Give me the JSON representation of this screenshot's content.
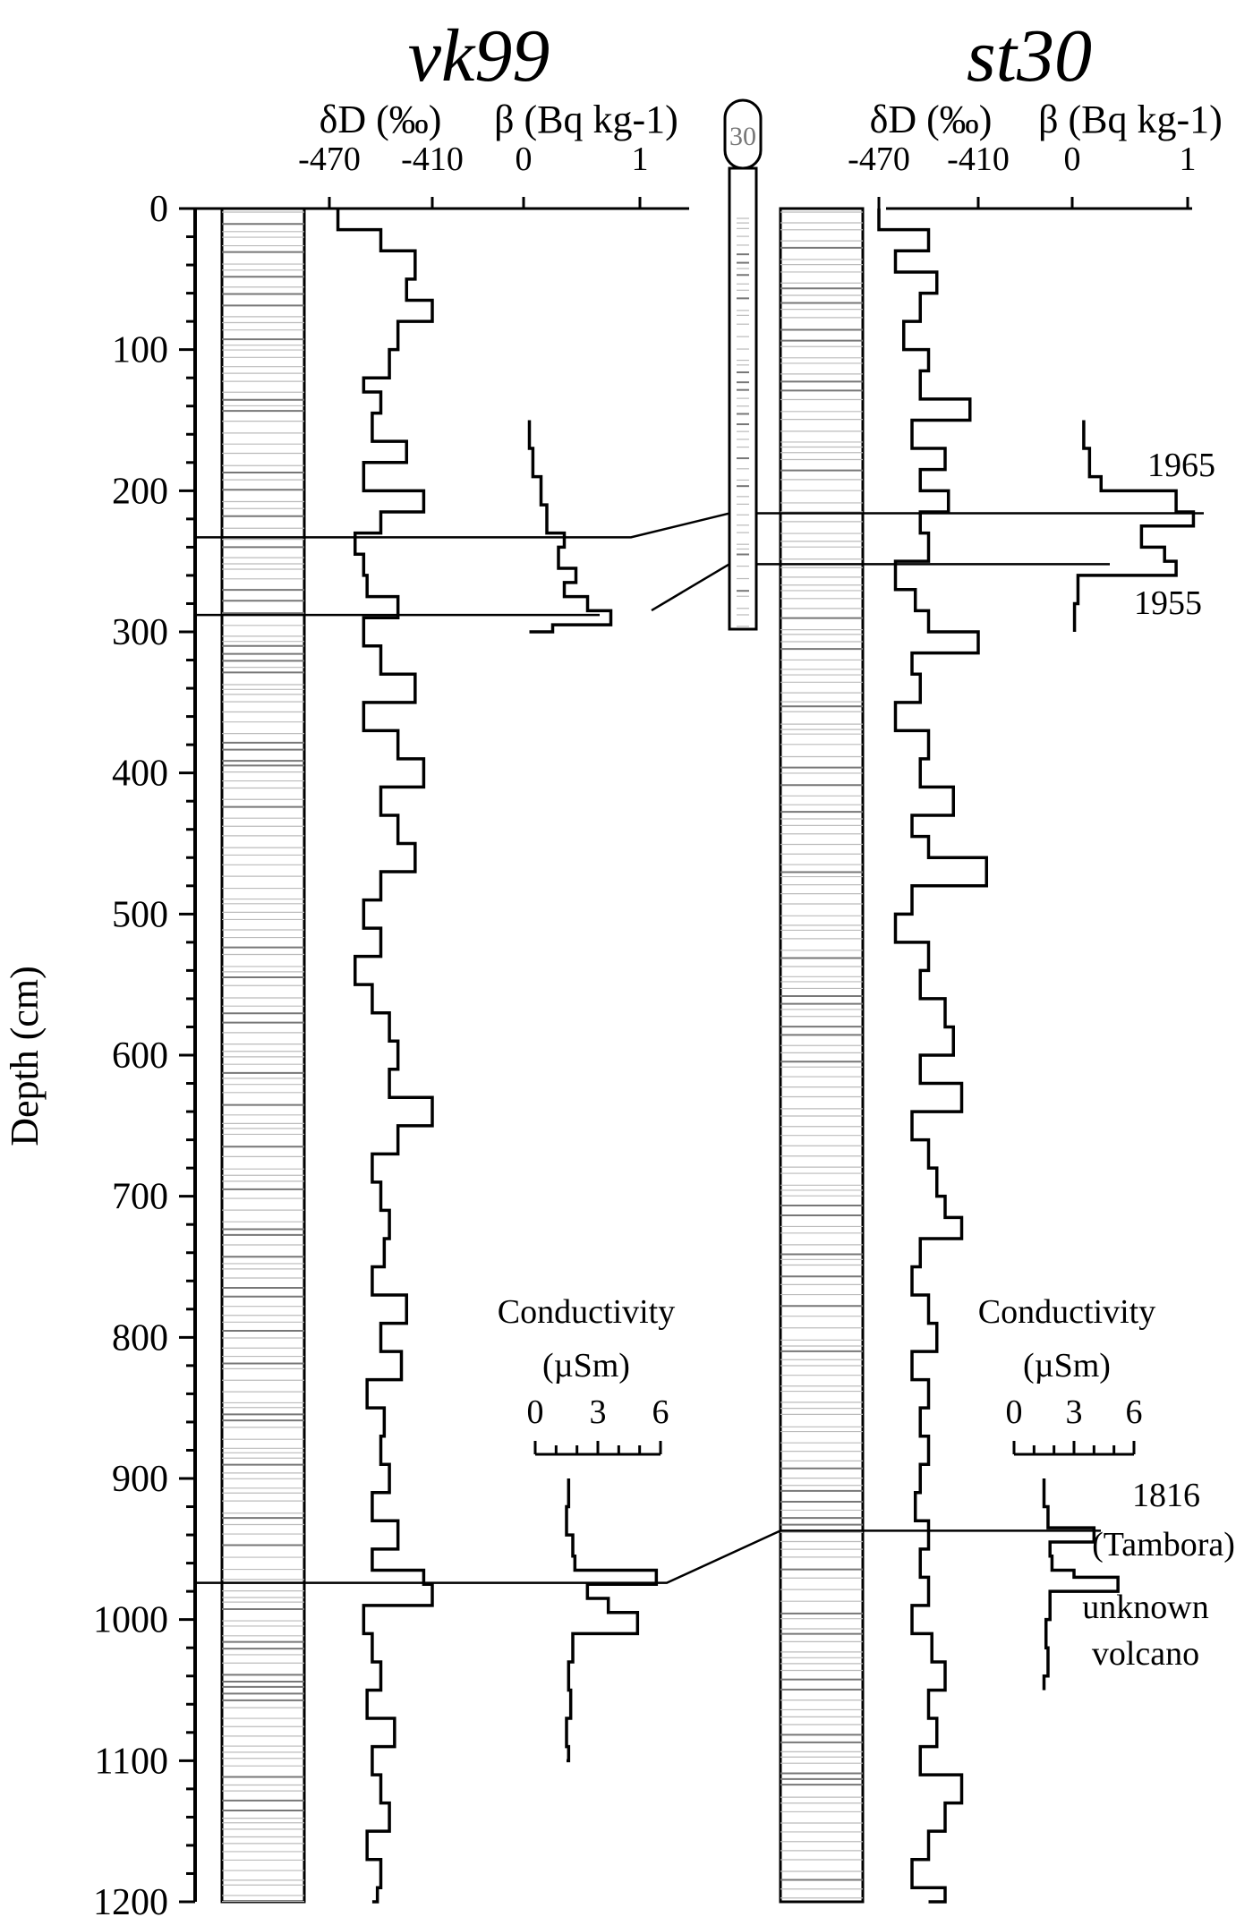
{
  "chart_data": {
    "type": "line",
    "ylabel": "Depth (cm)",
    "ylim": [
      0,
      1200
    ],
    "yticks": [
      "0",
      "100",
      "200",
      "300",
      "400",
      "500",
      "600",
      "700",
      "800",
      "900",
      "1000",
      "1100",
      "1200"
    ],
    "y_axis_inverted": true,
    "cores": [
      {
        "name": "vk99",
        "dD_label": "δD (‰)",
        "dD_ticks": [
          "-470",
          "-410"
        ],
        "beta_label": "β (Bq kg-1)",
        "beta_ticks": [
          "0",
          "1"
        ],
        "cond_label_1": "Conductivity",
        "cond_label_2": "(µSm)",
        "cond_ticks": [
          "0",
          "3",
          "6"
        ],
        "dD_depth": [
          0,
          15,
          30,
          50,
          65,
          80,
          100,
          120,
          130,
          145,
          165,
          180,
          200,
          215,
          230,
          245,
          260,
          275,
          290,
          310,
          330,
          350,
          370,
          390,
          410,
          430,
          450,
          470,
          490,
          510,
          530,
          550,
          570,
          590,
          610,
          630,
          650,
          670,
          690,
          710,
          730,
          750,
          770,
          790,
          810,
          830,
          850,
          870,
          890,
          910,
          930,
          950,
          965,
          975,
          990,
          1010,
          1030,
          1050,
          1070,
          1090,
          1110,
          1130,
          1150,
          1170,
          1190,
          1200
        ],
        "dD_values": [
          -465,
          -440,
          -420,
          -425,
          -410,
          -430,
          -435,
          -450,
          -440,
          -445,
          -425,
          -450,
          -415,
          -440,
          -455,
          -450,
          -448,
          -430,
          -450,
          -440,
          -420,
          -450,
          -430,
          -415,
          -440,
          -430,
          -420,
          -440,
          -450,
          -440,
          -455,
          -445,
          -435,
          -430,
          -435,
          -410,
          -430,
          -445,
          -440,
          -435,
          -438,
          -445,
          -425,
          -440,
          -428,
          -448,
          -438,
          -440,
          -435,
          -445,
          -430,
          -445,
          -415,
          -410,
          -450,
          -445,
          -440,
          -448,
          -432,
          -445,
          -440,
          -435,
          -448,
          -440,
          -442,
          -445
        ],
        "beta_depth": [
          150,
          170,
          190,
          210,
          230,
          240,
          255,
          265,
          275,
          285,
          295,
          300
        ],
        "beta_values": [
          0.05,
          0.08,
          0.15,
          0.2,
          0.35,
          0.3,
          0.45,
          0.35,
          0.55,
          0.75,
          0.25,
          0.05
        ],
        "cond_depth": [
          900,
          920,
          940,
          955,
          965,
          975,
          985,
          995,
          1010,
          1030,
          1050,
          1070,
          1090,
          1100
        ],
        "cond_values": [
          1.6,
          1.5,
          1.8,
          1.9,
          5.8,
          2.5,
          3.5,
          4.9,
          1.8,
          1.6,
          1.7,
          1.5,
          1.6,
          1.5
        ]
      },
      {
        "name": "st30",
        "dD_label": "δD (‰)",
        "dD_ticks": [
          "-470",
          "-410"
        ],
        "beta_label": "β (Bq kg-1)",
        "beta_ticks": [
          "0",
          "1"
        ],
        "cond_label_1": "Conductivity",
        "cond_label_2": "(µSm)",
        "cond_ticks": [
          "0",
          "3",
          "6"
        ],
        "dD_depth": [
          0,
          15,
          30,
          45,
          60,
          80,
          100,
          115,
          135,
          150,
          170,
          185,
          200,
          215,
          230,
          250,
          270,
          285,
          300,
          315,
          330,
          350,
          370,
          390,
          410,
          430,
          445,
          460,
          480,
          500,
          520,
          540,
          560,
          580,
          600,
          620,
          640,
          660,
          680,
          700,
          715,
          730,
          750,
          770,
          790,
          810,
          830,
          850,
          870,
          890,
          910,
          930,
          950,
          970,
          990,
          1010,
          1030,
          1050,
          1070,
          1090,
          1110,
          1130,
          1150,
          1170,
          1190,
          1200
        ],
        "dD_values": [
          -470,
          -440,
          -460,
          -435,
          -445,
          -455,
          -440,
          -445,
          -415,
          -450,
          -430,
          -445,
          -428,
          -445,
          -440,
          -460,
          -448,
          -440,
          -410,
          -450,
          -445,
          -460,
          -440,
          -445,
          -425,
          -450,
          -440,
          -405,
          -450,
          -460,
          -440,
          -445,
          -430,
          -425,
          -445,
          -420,
          -450,
          -440,
          -435,
          -430,
          -420,
          -445,
          -450,
          -440,
          -435,
          -450,
          -440,
          -445,
          -440,
          -445,
          -448,
          -440,
          -445,
          -440,
          -450,
          -438,
          -430,
          -440,
          -435,
          -445,
          -420,
          -430,
          -440,
          -450,
          -430,
          -440
        ],
        "beta_depth": [
          150,
          170,
          190,
          200,
          215,
          225,
          240,
          250,
          260,
          280,
          300
        ],
        "beta_values": [
          0.1,
          0.15,
          0.25,
          0.9,
          1.05,
          0.6,
          0.8,
          0.9,
          0.05,
          0.02,
          0.02
        ],
        "cond_depth": [
          900,
          920,
          935,
          945,
          955,
          965,
          970,
          980,
          1000,
          1020,
          1040,
          1050
        ],
        "cond_values": [
          1.5,
          1.7,
          4.0,
          1.8,
          1.9,
          3.0,
          5.2,
          1.8,
          1.6,
          1.7,
          1.5,
          1.5
        ]
      }
    ],
    "tie_lines": [
      {
        "label": "1965",
        "vk99_depth": 233,
        "st30_depth": 216
      },
      {
        "label": "1955",
        "vk99_depth": 288,
        "st30_depth": 252
      },
      {
        "label_1": "1816",
        "label_2": "(Tambora)",
        "vk99_depth": 974,
        "st30_depth": 937
      }
    ],
    "unknown_volcano_label_1": "unknown",
    "unknown_volcano_label_2": "volcano",
    "middle_column_label": "30"
  }
}
